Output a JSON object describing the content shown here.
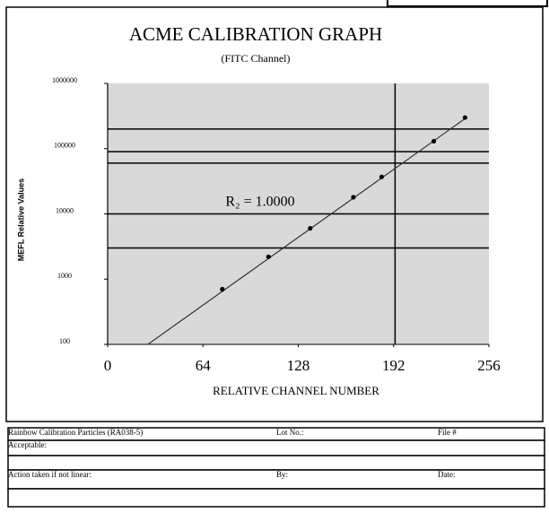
{
  "chart_data": {
    "type": "scatter",
    "title": "ACME CALIBRATION GRAPH",
    "subtitle": "(FITC Channel)",
    "x_label": "RELATIVE CHANNEL NUMBER",
    "y_label": "MEFL Relative Values",
    "annotation": "R₂ = 1.0000",
    "xlim": [
      0,
      256
    ],
    "xticks": [
      0,
      64,
      128,
      192,
      256
    ],
    "ylim": [
      100,
      1000000
    ],
    "yticks": [
      100,
      1000,
      10000,
      100000,
      1000000
    ],
    "log_y": true,
    "points": {
      "x": [
        77,
        108,
        136,
        165,
        184,
        219,
        240
      ],
      "values": [
        700,
        2200,
        6000,
        18000,
        37000,
        130000,
        300000
      ],
      "color": "#000000"
    },
    "trend": {
      "x": [
        27,
        241
      ],
      "values": [
        100,
        300000
      ],
      "color": "#333333"
    },
    "hlines": [
      200000,
      90000,
      60000,
      10000,
      3000
    ],
    "vlines": [
      193
    ],
    "plot_color": "#d9d9d9"
  },
  "form": {
    "rows": [
      [
        "Rainbow Calibration Particles (RA038-5)",
        "Lot No.:",
        "File #"
      ],
      [
        "Acceptable:"
      ],
      [],
      [
        "Action taken if not linear:",
        "By:",
        "Date:"
      ],
      []
    ]
  }
}
